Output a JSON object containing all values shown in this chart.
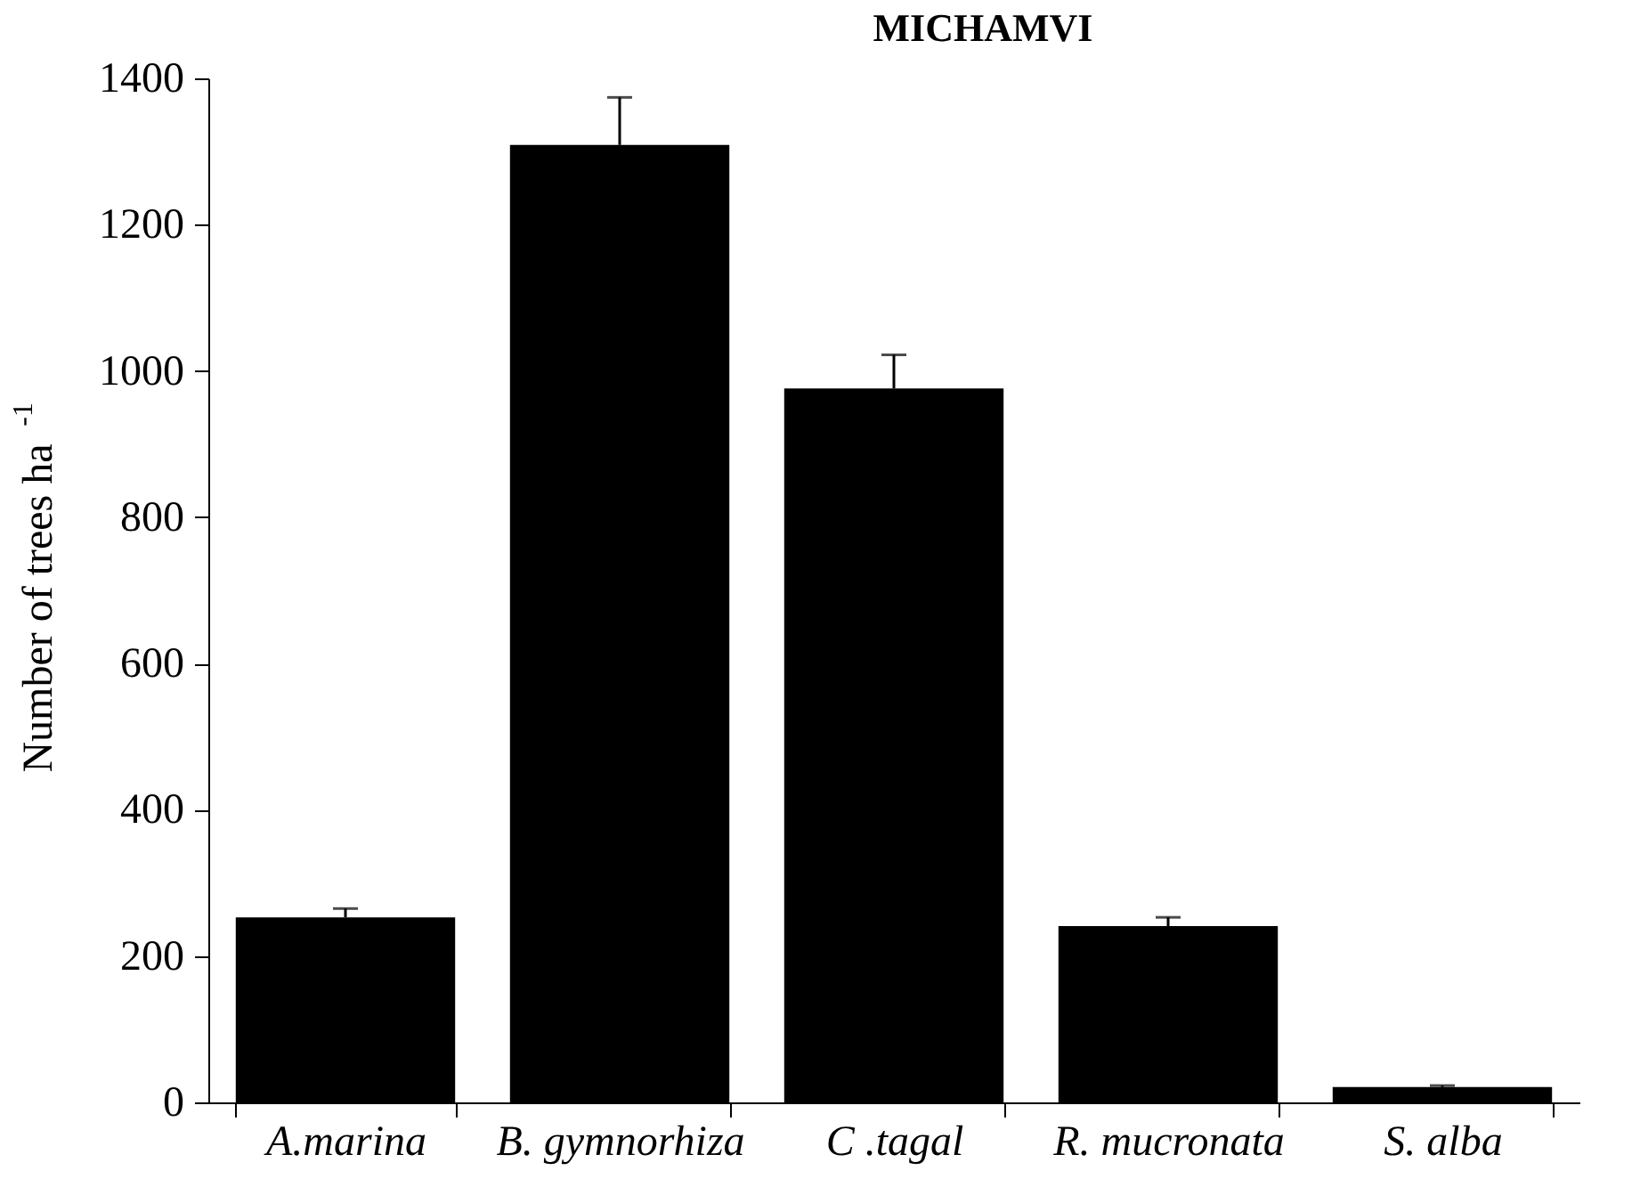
{
  "chart_data": {
    "type": "bar",
    "title": "MICHAMVI",
    "ylabel": "Number of trees ha$^{-1}$",
    "categories": [
      "A.marina",
      "B. gymnorhiza",
      "C .tagal",
      "R. mucronata",
      "S. alba"
    ],
    "values": [
      253,
      1309,
      976,
      241,
      21
    ],
    "errors": [
      [
        253,
        265
      ],
      [
        1309,
        1374
      ],
      [
        976,
        1022
      ],
      [
        241,
        253
      ],
      [
        21,
        23
      ]
    ],
    "color": "#000000",
    "ylim": [
      0,
      1400
    ],
    "yticks": [
      0,
      200,
      400,
      600,
      800,
      1000,
      1200,
      1400
    ],
    "grid": false
  }
}
